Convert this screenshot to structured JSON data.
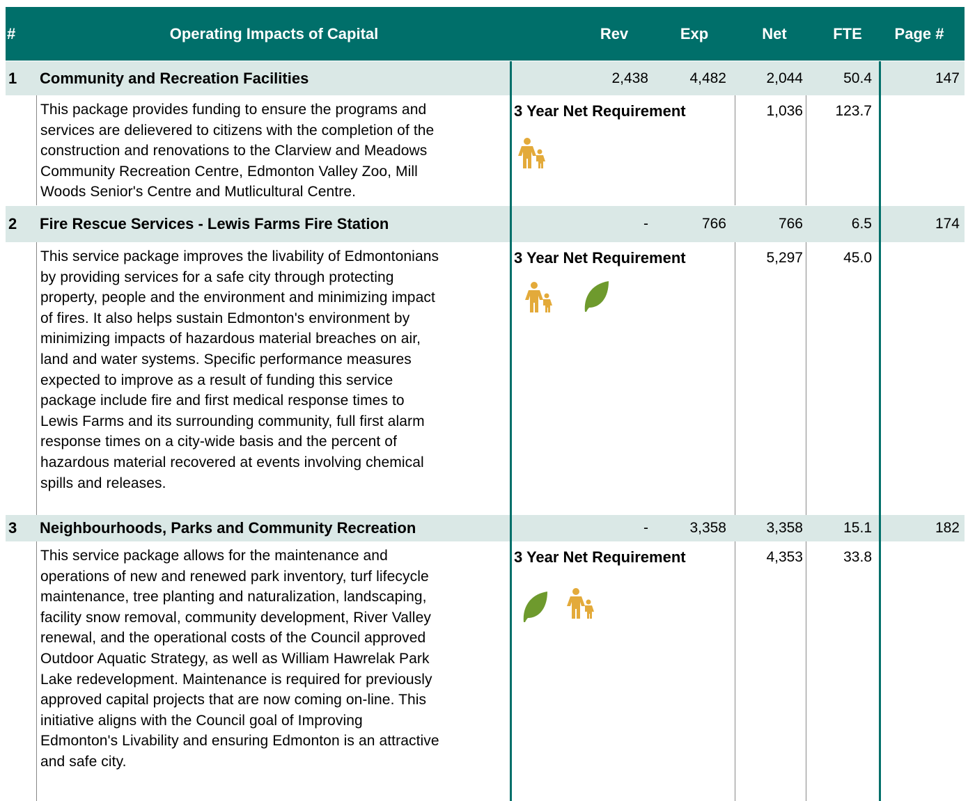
{
  "header": {
    "number": "#",
    "title": "Operating Impacts of Capital",
    "rev": "Rev",
    "exp": "Exp",
    "net": "Net",
    "fte": "FTE",
    "page": "Page #"
  },
  "rows": [
    {
      "number": "1",
      "title": "Community and Recreation Facilities",
      "rev": "2,438",
      "exp": "4,482",
      "net": "2,044",
      "fte": "50.4",
      "page": "147",
      "requirement_label": "3 Year Net Requirement",
      "requirement_net": "1,036",
      "requirement_fte": "123.7",
      "description": [
        "This package provides funding to ensure the programs and",
        "services are delievered to citizens with the completion of the",
        "construction and renovations to the Clarview and Meadows",
        "Community Recreation Centre, Edmonton Valley Zoo, Mill",
        "Woods Senior's Centre and Mutlicultural Centre."
      ]
    },
    {
      "number": "2",
      "title": "Fire Rescue Services - Lewis Farms Fire Station",
      "rev": "-",
      "exp": "766",
      "net": "766",
      "fte": "6.5",
      "page": "174",
      "requirement_label": "3 Year Net Requirement",
      "requirement_net": "5,297",
      "requirement_fte": "45.0",
      "description": [
        "This service package improves the livability of Edmontonians",
        "by providing services for a safe city through protecting",
        "property, people and the environment and minimizing impact",
        "of fires. It also helps sustain Edmonton's environment by",
        "minimizing impacts of hazardous material breaches on air,",
        "land and water systems.  Specific performance measures",
        "expected to improve as a result of funding this service",
        "package include fire and first medical response times to",
        "Lewis Farms and its surrounding community, full first alarm",
        "response times on a city-wide basis and the percent of",
        "hazardous material recovered at events involving chemical",
        "spills and releases."
      ]
    },
    {
      "number": "3",
      "title": "Neighbourhoods, Parks and Community Recreation",
      "rev": "-",
      "exp": "3,358",
      "net": "3,358",
      "fte": "15.1",
      "page": "182",
      "requirement_label": "3 Year Net Requirement",
      "requirement_net": "4,353",
      "requirement_fte": "33.8",
      "description": [
        "This service package allows for the maintenance and",
        "operations of new and renewed park inventory, turf lifecycle",
        "maintenance, tree planting and naturalization, landscaping,",
        "facility snow removal, community development, River Valley",
        "renewal, and the operational costs of the Council approved",
        "Outdoor Aquatic Strategy, as well as William Hawrelak Park",
        "Lake redevelopment. Maintenance is required for previously",
        "approved capital projects that are now coming on-line. This",
        "initiative aligns with the Council goal of Improving",
        "Edmonton's Livability and ensuring Edmonton is an attractive",
        "and safe city."
      ]
    }
  ]
}
